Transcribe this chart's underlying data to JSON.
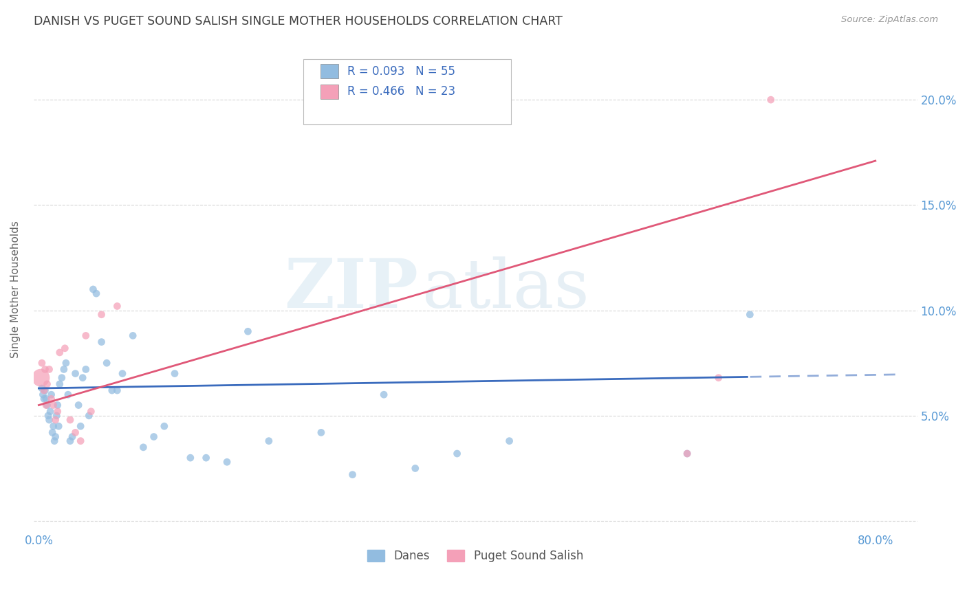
{
  "title": "DANISH VS PUGET SOUND SALISH SINGLE MOTHER HOUSEHOLDS CORRELATION CHART",
  "source": "Source: ZipAtlas.com",
  "ylabel": "Single Mother Households",
  "watermark_zip": "ZIP",
  "watermark_atlas": "atlas",
  "blue_color": "#92bce0",
  "pink_color": "#f4a0b8",
  "blue_line_color": "#3a6bbd",
  "pink_line_color": "#e05878",
  "title_color": "#404040",
  "axis_label_color": "#5b9bd5",
  "grid_color": "#cccccc",
  "xlim": [
    -0.005,
    0.84
  ],
  "ylim": [
    -0.005,
    0.225
  ],
  "yticks": [
    0.0,
    0.05,
    0.1,
    0.15,
    0.2
  ],
  "ytick_labels": [
    "",
    "5.0%",
    "10.0%",
    "15.0%",
    "20.0%"
  ],
  "xtick_positions": [
    0.0,
    0.8
  ],
  "xtick_labels": [
    "0.0%",
    "80.0%"
  ],
  "danes_x": [
    0.003,
    0.004,
    0.005,
    0.006,
    0.007,
    0.008,
    0.009,
    0.01,
    0.011,
    0.012,
    0.013,
    0.014,
    0.015,
    0.016,
    0.017,
    0.018,
    0.019,
    0.02,
    0.022,
    0.024,
    0.026,
    0.028,
    0.03,
    0.032,
    0.035,
    0.038,
    0.04,
    0.042,
    0.045,
    0.048,
    0.052,
    0.055,
    0.06,
    0.065,
    0.07,
    0.075,
    0.08,
    0.09,
    0.1,
    0.11,
    0.12,
    0.13,
    0.145,
    0.16,
    0.18,
    0.2,
    0.22,
    0.27,
    0.3,
    0.33,
    0.36,
    0.4,
    0.45,
    0.62,
    0.68
  ],
  "danes_y": [
    0.063,
    0.06,
    0.058,
    0.062,
    0.058,
    0.055,
    0.05,
    0.048,
    0.052,
    0.06,
    0.042,
    0.045,
    0.038,
    0.04,
    0.05,
    0.055,
    0.045,
    0.065,
    0.068,
    0.072,
    0.075,
    0.06,
    0.038,
    0.04,
    0.07,
    0.055,
    0.045,
    0.068,
    0.072,
    0.05,
    0.11,
    0.108,
    0.085,
    0.075,
    0.062,
    0.062,
    0.07,
    0.088,
    0.035,
    0.04,
    0.045,
    0.07,
    0.03,
    0.03,
    0.028,
    0.09,
    0.038,
    0.042,
    0.022,
    0.06,
    0.025,
    0.032,
    0.038,
    0.032,
    0.098
  ],
  "salish_x": [
    0.002,
    0.003,
    0.005,
    0.006,
    0.007,
    0.008,
    0.01,
    0.012,
    0.014,
    0.016,
    0.018,
    0.02,
    0.025,
    0.03,
    0.035,
    0.04,
    0.045,
    0.05,
    0.06,
    0.075,
    0.62,
    0.65,
    0.7
  ],
  "salish_y": [
    0.068,
    0.075,
    0.062,
    0.072,
    0.055,
    0.065,
    0.072,
    0.058,
    0.055,
    0.048,
    0.052,
    0.08,
    0.082,
    0.048,
    0.042,
    0.038,
    0.088,
    0.052,
    0.098,
    0.102,
    0.032,
    0.068,
    0.2
  ],
  "salish_sizes": [
    350,
    60,
    60,
    60,
    60,
    60,
    60,
    60,
    60,
    60,
    60,
    60,
    60,
    60,
    60,
    60,
    60,
    60,
    60,
    60,
    60,
    60,
    60
  ],
  "danes_sizes": [
    60,
    60,
    60,
    60,
    60,
    60,
    60,
    60,
    60,
    60,
    60,
    60,
    60,
    60,
    60,
    60,
    60,
    60,
    60,
    60,
    60,
    60,
    60,
    60,
    60,
    60,
    60,
    60,
    60,
    60,
    60,
    60,
    60,
    60,
    60,
    60,
    60,
    60,
    60,
    60,
    60,
    60,
    60,
    60,
    60,
    60,
    60,
    60,
    60,
    60,
    60,
    60,
    60,
    60,
    60
  ],
  "blue_line_intercept": 0.063,
  "blue_line_slope": 0.008,
  "blue_line_x_end_solid": 0.68,
  "pink_line_intercept": 0.055,
  "pink_line_slope": 0.145,
  "pink_line_x_end": 0.8
}
